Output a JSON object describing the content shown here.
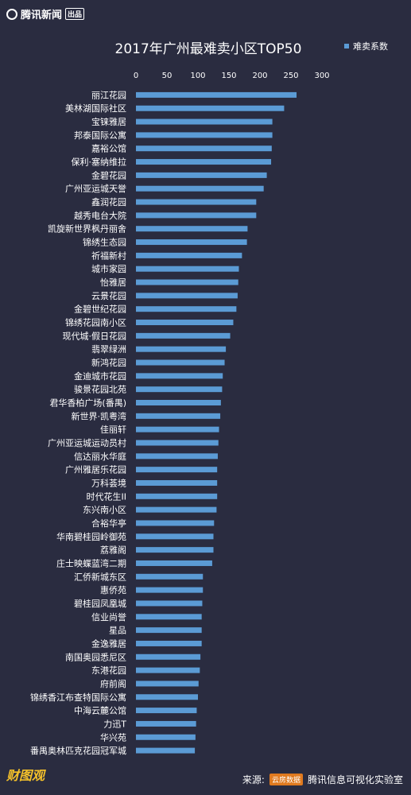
{
  "header": {
    "logo_text": "腾讯新闻",
    "logo_badge": "出品"
  },
  "footer": {
    "brand": "财图观",
    "source_label": "来源:",
    "source_logo": "云房数据",
    "source_lab": "腾讯信息可视化实验室"
  },
  "colors": {
    "background": "#2a2c40",
    "bar": "#5b9bd5",
    "text": "#ffffff"
  },
  "chart_data": {
    "type": "bar",
    "orientation": "horizontal",
    "title": "2017年广州最难卖小区TOP50",
    "legend": {
      "label": "难卖系数",
      "placement": "top-right"
    },
    "xlim": [
      0,
      300
    ],
    "xticks": [
      0,
      50,
      100,
      150,
      200,
      250,
      300
    ],
    "grid": false,
    "categories": [
      "丽江花园",
      "美林湖国际社区",
      "宝铼雅居",
      "邦泰国际公寓",
      "嘉裕公馆",
      "保利·塞纳维拉",
      "金碧花园",
      "广州亚运城天誉",
      "鑫润花园",
      "越秀电台大院",
      "凯旋新世界枫丹丽舍",
      "锦绣生态园",
      "祈福新村",
      "城市家园",
      "怡雅居",
      "云景花园",
      "金碧世纪花园",
      "锦绣花园南小区",
      "现代城·假日花园",
      "翡翠绿洲",
      "新鸿花园",
      "金迪城市花园",
      "骏景花园北苑",
      "君华香柏广场(番禺)",
      "新世界·凯粤湾",
      "佳丽轩",
      "广州亚运城运动员村",
      "信达丽水华庭",
      "广州雅居乐花园",
      "万科荟境",
      "时代花生II",
      "东兴南小区",
      "合裕华亭",
      "华南碧桂园岭御苑",
      "荔雅阁",
      "庄士映蝶蓝湾二期",
      "汇侨新城东区",
      "惠侨苑",
      "碧桂园凤凰城",
      "信业尚誉",
      "星品",
      "金逸雅居",
      "南国奥园悉尼区",
      "东港花园",
      "府前阁",
      "锦绣香江布查特国际公寓",
      "中海云麓公馆",
      "力迅T",
      "华兴苑",
      "番禺奥林匹克花园冠军城"
    ],
    "values": [
      259,
      239,
      220,
      220,
      219,
      218,
      211,
      206,
      194,
      194,
      180,
      179,
      171,
      166,
      165,
      164,
      162,
      157,
      152,
      145,
      143,
      140,
      139,
      137,
      136,
      134,
      133,
      132,
      131,
      131,
      131,
      130,
      126,
      125,
      125,
      123,
      108,
      108,
      107,
      106,
      106,
      106,
      104,
      103,
      101,
      100,
      98,
      97,
      96,
      95
    ]
  }
}
